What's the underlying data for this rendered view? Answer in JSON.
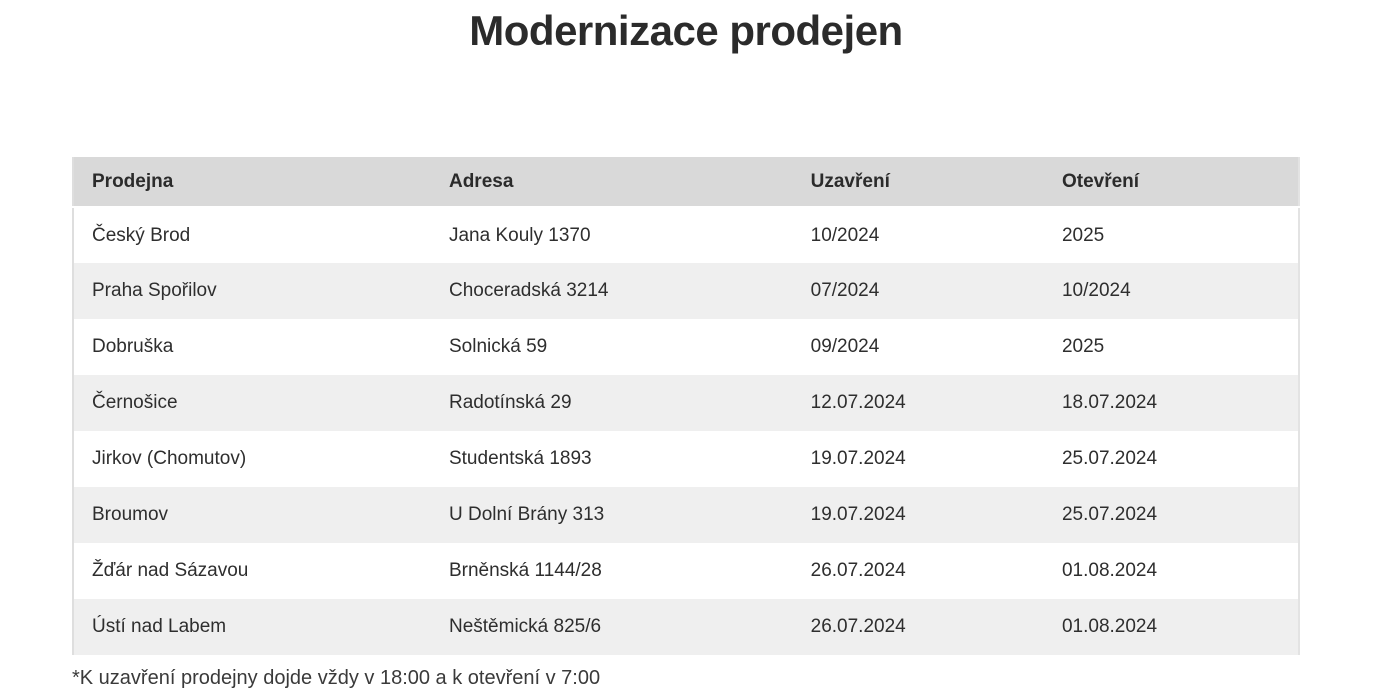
{
  "page": {
    "title": "Modernizace prodejen",
    "footnote": "*K uzavření prodejny dojde vždy v 18:00 a k otevření v 7:00"
  },
  "colors": {
    "header_bg": "#d9d9d9",
    "stripe_bg": "#efefef",
    "text": "#2e2e2e"
  },
  "table": {
    "columns": [
      "Prodejna",
      "Adresa",
      "Uzavření",
      "Otevření"
    ],
    "rows": [
      [
        "Český Brod",
        "Jana Kouly 1370",
        "10/2024",
        "2025"
      ],
      [
        "Praha Spořilov",
        "Choceradská 3214",
        "07/2024",
        "10/2024"
      ],
      [
        "Dobruška",
        "Solnická 59",
        "09/2024",
        "2025"
      ],
      [
        "Černošice",
        "Radotínská 29",
        "12.07.2024",
        "18.07.2024"
      ],
      [
        "Jirkov (Chomutov)",
        "Studentská 1893",
        "19.07.2024",
        "25.07.2024"
      ],
      [
        "Broumov",
        "U Dolní Brány 313",
        "19.07.2024",
        "25.07.2024"
      ],
      [
        "Žďár nad Sázavou",
        "Brněnská 1144/28",
        "26.07.2024",
        "01.08.2024"
      ],
      [
        "Ústí nad Labem",
        "Neštěmická 825/6",
        "26.07.2024",
        "01.08.2024"
      ]
    ]
  }
}
